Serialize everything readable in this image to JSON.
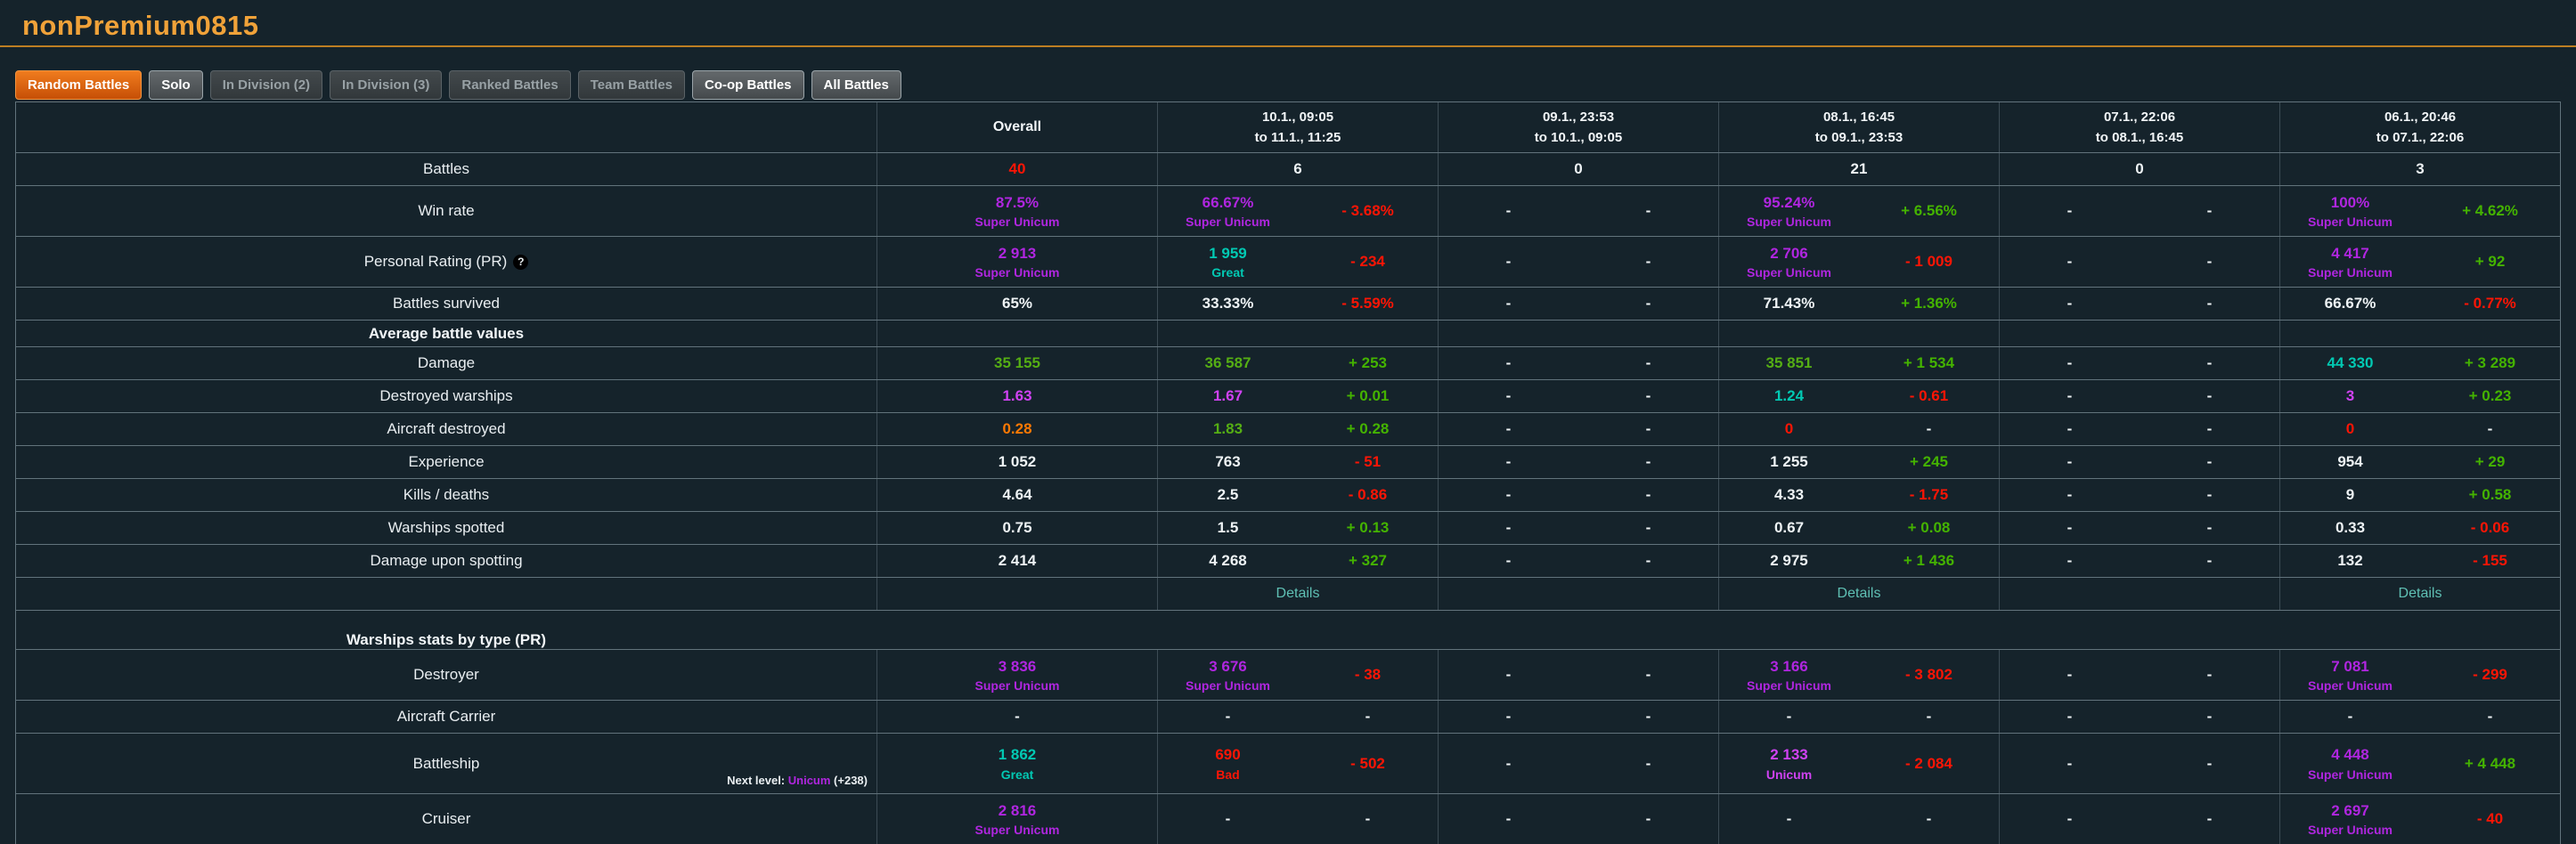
{
  "page": {
    "title": "nonPremium0815"
  },
  "filters": [
    {
      "label": "Random Battles",
      "state": "active"
    },
    {
      "label": "Solo",
      "state": "enabled"
    },
    {
      "label": "In Division (2)",
      "state": "disabled"
    },
    {
      "label": "In Division (3)",
      "state": "disabled"
    },
    {
      "label": "Ranked Battles",
      "state": "disabled"
    },
    {
      "label": "Team Battles",
      "state": "disabled"
    },
    {
      "label": "Co-op Battles",
      "state": "enabled"
    },
    {
      "label": "All Battles",
      "state": "enabled"
    }
  ],
  "colors": {
    "accent_orange": "#f0a239",
    "super_unicum": "#b026e0",
    "unicum": "#d042f3",
    "great": "#02c9b3",
    "good": "#55ae14",
    "below_average": "#fe7903",
    "bad": "#fe1505",
    "delta_positive": "#44b300",
    "delta_negative": "#fe1505",
    "link": "#5fc0b4"
  },
  "table": {
    "columns": [
      {
        "title": "Overall"
      },
      {
        "line1": "10.1., 09:05",
        "line2": "to 11.1., 11:25"
      },
      {
        "line1": "09.1., 23:53",
        "line2": "to 10.1., 09:05"
      },
      {
        "line1": "08.1., 16:45",
        "line2": "to 09.1., 23:53"
      },
      {
        "line1": "07.1., 22:06",
        "line2": "to 08.1., 16:45"
      },
      {
        "line1": "06.1., 20:46",
        "line2": "to 07.1., 22:06"
      }
    ],
    "rows": [
      {
        "label": "Battles",
        "kind": "simple",
        "cells": [
          {
            "m": "center",
            "v": "40",
            "c": "bad"
          },
          {
            "m": "center",
            "v": "6",
            "c": "white"
          },
          {
            "m": "center",
            "v": "0",
            "c": "white"
          },
          {
            "m": "center",
            "v": "21",
            "c": "white"
          },
          {
            "m": "center",
            "v": "0",
            "c": "white"
          },
          {
            "m": "center",
            "v": "3",
            "c": "white"
          }
        ]
      },
      {
        "label": "Win rate",
        "kind": "tall",
        "cells": [
          {
            "m": "full",
            "v": "87.5%",
            "c": "su",
            "r": "Super Unicum",
            "rc": "su"
          },
          {
            "m": "split",
            "v": "66.67%",
            "c": "su",
            "r": "Super Unicum",
            "rc": "su",
            "d": "- 3.68%",
            "dc": "neg"
          },
          {
            "m": "dash",
            "v": "-",
            "d": "-"
          },
          {
            "m": "split",
            "v": "95.24%",
            "c": "su",
            "r": "Super Unicum",
            "rc": "su",
            "d": "+ 6.56%",
            "dc": "pos"
          },
          {
            "m": "dash",
            "v": "-",
            "d": "-"
          },
          {
            "m": "split",
            "v": "100%",
            "c": "su",
            "r": "Super Unicum",
            "rc": "su",
            "d": "+ 4.62%",
            "dc": "pos"
          }
        ]
      },
      {
        "label": "Personal Rating (PR)",
        "kind": "tall",
        "help": "?",
        "cells": [
          {
            "m": "full",
            "v": "2 913",
            "c": "su",
            "r": "Super Unicum",
            "rc": "su"
          },
          {
            "m": "split",
            "v": "1 959",
            "c": "great",
            "r": "Great",
            "rc": "great",
            "d": "- 234",
            "dc": "neg"
          },
          {
            "m": "dash",
            "v": "-",
            "d": "-"
          },
          {
            "m": "split",
            "v": "2 706",
            "c": "su",
            "r": "Super Unicum",
            "rc": "su",
            "d": "- 1 009",
            "dc": "neg"
          },
          {
            "m": "dash",
            "v": "-",
            "d": "-"
          },
          {
            "m": "split",
            "v": "4 417",
            "c": "su",
            "r": "Super Unicum",
            "rc": "su",
            "d": "+ 92",
            "dc": "pos"
          }
        ]
      },
      {
        "label": "Battles survived",
        "kind": "simple",
        "cells": [
          {
            "m": "center",
            "v": "65%",
            "c": "white"
          },
          {
            "m": "split",
            "v": "33.33%",
            "c": "white",
            "d": "- 5.59%",
            "dc": "neg"
          },
          {
            "m": "dash",
            "v": "-",
            "d": "-"
          },
          {
            "m": "split",
            "v": "71.43%",
            "c": "white",
            "d": "+ 1.36%",
            "dc": "pos"
          },
          {
            "m": "dash",
            "v": "-",
            "d": "-"
          },
          {
            "m": "split",
            "v": "66.67%",
            "c": "white",
            "d": "- 0.77%",
            "dc": "neg"
          }
        ]
      },
      {
        "label": "Average battle values",
        "kind": "section",
        "cells": [
          {
            "m": "empty"
          },
          {
            "m": "empty"
          },
          {
            "m": "empty"
          },
          {
            "m": "empty"
          },
          {
            "m": "empty"
          },
          {
            "m": "empty"
          }
        ]
      },
      {
        "label": "Damage",
        "kind": "simple",
        "cells": [
          {
            "m": "center",
            "v": "35 155",
            "c": "good"
          },
          {
            "m": "split",
            "v": "36 587",
            "c": "good",
            "d": "+ 253",
            "dc": "pos"
          },
          {
            "m": "dash",
            "v": "-",
            "d": "-"
          },
          {
            "m": "split",
            "v": "35 851",
            "c": "good",
            "d": "+ 1 534",
            "dc": "pos"
          },
          {
            "m": "dash",
            "v": "-",
            "d": "-"
          },
          {
            "m": "split",
            "v": "44 330",
            "c": "great",
            "d": "+ 3 289",
            "dc": "pos"
          }
        ]
      },
      {
        "label": "Destroyed warships",
        "kind": "simple",
        "cells": [
          {
            "m": "center",
            "v": "1.63",
            "c": "uni"
          },
          {
            "m": "split",
            "v": "1.67",
            "c": "uni",
            "d": "+ 0.01",
            "dc": "pos"
          },
          {
            "m": "dash",
            "v": "-",
            "d": "-"
          },
          {
            "m": "split",
            "v": "1.24",
            "c": "great",
            "d": "- 0.61",
            "dc": "neg"
          },
          {
            "m": "dash",
            "v": "-",
            "d": "-"
          },
          {
            "m": "split",
            "v": "3",
            "c": "uni",
            "d": "+ 0.23",
            "dc": "pos"
          }
        ]
      },
      {
        "label": "Aircraft destroyed",
        "kind": "simple",
        "cells": [
          {
            "m": "center",
            "v": "0.28",
            "c": "orange"
          },
          {
            "m": "split",
            "v": "1.83",
            "c": "good",
            "d": "+ 0.28",
            "dc": "pos"
          },
          {
            "m": "dash",
            "v": "-",
            "d": "-"
          },
          {
            "m": "split",
            "v": "0",
            "c": "bad",
            "d": "-",
            "dc": "white"
          },
          {
            "m": "dash",
            "v": "-",
            "d": "-"
          },
          {
            "m": "split",
            "v": "0",
            "c": "bad",
            "d": "-",
            "dc": "white"
          }
        ]
      },
      {
        "label": "Experience",
        "kind": "simple",
        "cells": [
          {
            "m": "center",
            "v": "1 052",
            "c": "white"
          },
          {
            "m": "split",
            "v": "763",
            "c": "white",
            "d": "- 51",
            "dc": "neg"
          },
          {
            "m": "dash",
            "v": "-",
            "d": "-"
          },
          {
            "m": "split",
            "v": "1 255",
            "c": "white",
            "d": "+ 245",
            "dc": "pos"
          },
          {
            "m": "dash",
            "v": "-",
            "d": "-"
          },
          {
            "m": "split",
            "v": "954",
            "c": "white",
            "d": "+ 29",
            "dc": "pos"
          }
        ]
      },
      {
        "label": "Kills / deaths",
        "kind": "simple",
        "cells": [
          {
            "m": "center",
            "v": "4.64",
            "c": "white"
          },
          {
            "m": "split",
            "v": "2.5",
            "c": "white",
            "d": "- 0.86",
            "dc": "neg"
          },
          {
            "m": "dash",
            "v": "-",
            "d": "-"
          },
          {
            "m": "split",
            "v": "4.33",
            "c": "white",
            "d": "- 1.75",
            "dc": "neg"
          },
          {
            "m": "dash",
            "v": "-",
            "d": "-"
          },
          {
            "m": "split",
            "v": "9",
            "c": "white",
            "d": "+ 0.58",
            "dc": "pos"
          }
        ]
      },
      {
        "label": "Warships spotted",
        "kind": "simple",
        "cells": [
          {
            "m": "center",
            "v": "0.75",
            "c": "white"
          },
          {
            "m": "split",
            "v": "1.5",
            "c": "white",
            "d": "+ 0.13",
            "dc": "pos"
          },
          {
            "m": "dash",
            "v": "-",
            "d": "-"
          },
          {
            "m": "split",
            "v": "0.67",
            "c": "white",
            "d": "+ 0.08",
            "dc": "pos"
          },
          {
            "m": "dash",
            "v": "-",
            "d": "-"
          },
          {
            "m": "split",
            "v": "0.33",
            "c": "white",
            "d": "- 0.06",
            "dc": "neg"
          }
        ]
      },
      {
        "label": "Damage upon spotting",
        "kind": "simple",
        "cells": [
          {
            "m": "center",
            "v": "2 414",
            "c": "white"
          },
          {
            "m": "split",
            "v": "4 268",
            "c": "white",
            "d": "+ 327",
            "dc": "pos"
          },
          {
            "m": "dash",
            "v": "-",
            "d": "-"
          },
          {
            "m": "split",
            "v": "2 975",
            "c": "white",
            "d": "+ 1 436",
            "dc": "pos"
          },
          {
            "m": "dash",
            "v": "-",
            "d": "-"
          },
          {
            "m": "split",
            "v": "132",
            "c": "white",
            "d": "- 155",
            "dc": "neg"
          }
        ]
      },
      {
        "label": "",
        "kind": "details",
        "cells": [
          {
            "m": "empty"
          },
          {
            "m": "link",
            "v": "Details"
          },
          {
            "m": "empty"
          },
          {
            "m": "link",
            "v": "Details"
          },
          {
            "m": "empty"
          },
          {
            "m": "link",
            "v": "Details"
          }
        ]
      },
      {
        "label": "Warships stats by type (PR)",
        "kind": "section-lg",
        "cells": [
          {
            "m": "empty"
          },
          {
            "m": "empty"
          },
          {
            "m": "empty"
          },
          {
            "m": "empty"
          },
          {
            "m": "empty"
          },
          {
            "m": "empty"
          }
        ]
      },
      {
        "label": "Destroyer",
        "kind": "tall",
        "cells": [
          {
            "m": "full",
            "v": "3 836",
            "c": "su",
            "r": "Super Unicum",
            "rc": "su"
          },
          {
            "m": "split",
            "v": "3 676",
            "c": "su",
            "r": "Super Unicum",
            "rc": "su",
            "d": "- 38",
            "dc": "neg"
          },
          {
            "m": "dash",
            "v": "-",
            "d": "-"
          },
          {
            "m": "split",
            "v": "3 166",
            "c": "su",
            "r": "Super Unicum",
            "rc": "su",
            "d": "- 3 802",
            "dc": "neg"
          },
          {
            "m": "dash",
            "v": "-",
            "d": "-"
          },
          {
            "m": "split",
            "v": "7 081",
            "c": "su",
            "r": "Super Unicum",
            "rc": "su",
            "d": "- 299",
            "dc": "neg"
          }
        ]
      },
      {
        "label": "Aircraft Carrier",
        "kind": "simple",
        "cells": [
          {
            "m": "center",
            "v": "-",
            "c": "white"
          },
          {
            "m": "dash",
            "v": "-",
            "d": "-"
          },
          {
            "m": "dash",
            "v": "-",
            "d": "-"
          },
          {
            "m": "dash",
            "v": "-",
            "d": "-"
          },
          {
            "m": "dash",
            "v": "-",
            "d": "-"
          },
          {
            "m": "dash",
            "v": "-",
            "d": "-"
          }
        ]
      },
      {
        "label": "Battleship",
        "kind": "tall-note",
        "note": {
          "prefix": "Next level: ",
          "link": "Unicum",
          "suffix": " (+238)"
        },
        "cells": [
          {
            "m": "full",
            "v": "1 862",
            "c": "great",
            "r": "Great",
            "rc": "great"
          },
          {
            "m": "split",
            "v": "690",
            "c": "bad",
            "r": "Bad",
            "rc": "bad",
            "d": "- 502",
            "dc": "neg"
          },
          {
            "m": "dash",
            "v": "-",
            "d": "-"
          },
          {
            "m": "split",
            "v": "2 133",
            "c": "uni",
            "r": "Unicum",
            "rc": "uni",
            "d": "- 2 084",
            "dc": "neg"
          },
          {
            "m": "dash",
            "v": "-",
            "d": "-"
          },
          {
            "m": "split",
            "v": "4 448",
            "c": "su",
            "r": "Super Unicum",
            "rc": "su",
            "d": "+ 4 448",
            "dc": "pos"
          }
        ]
      },
      {
        "label": "Cruiser",
        "kind": "tall",
        "cells": [
          {
            "m": "full",
            "v": "2 816",
            "c": "su",
            "r": "Super Unicum",
            "rc": "su"
          },
          {
            "m": "dash",
            "v": "-",
            "d": "-"
          },
          {
            "m": "dash",
            "v": "-",
            "d": "-"
          },
          {
            "m": "dash",
            "v": "-",
            "d": "-"
          },
          {
            "m": "dash",
            "v": "-",
            "d": "-"
          },
          {
            "m": "split",
            "v": "2 697",
            "c": "su",
            "r": "Super Unicum",
            "rc": "su",
            "d": "- 40",
            "dc": "neg"
          }
        ]
      }
    ]
  }
}
